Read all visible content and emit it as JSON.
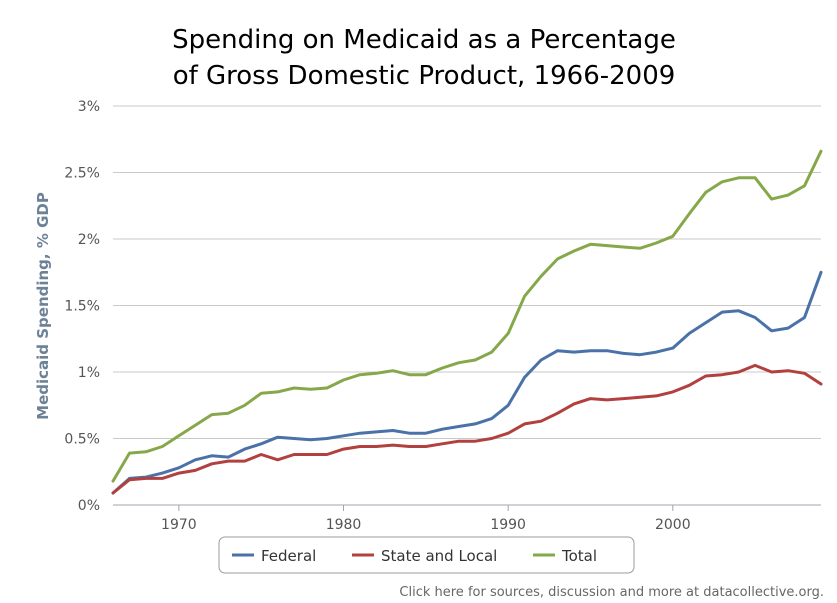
{
  "chart_data": {
    "type": "line",
    "title_lines": [
      "Spending on Medicaid as a Percentage",
      "of Gross Domestic Product, 1966-2009"
    ],
    "ylabel": "Medicaid Spending, % GDP",
    "xlabel": "",
    "xlim": [
      1966,
      2009
    ],
    "ylim": [
      0,
      3
    ],
    "x_ticks": [
      1970,
      1980,
      1990,
      2000
    ],
    "y_ticks": [
      0,
      0.5,
      1,
      1.5,
      2,
      2.5,
      3
    ],
    "y_tick_labels": [
      "0%",
      "0.5%",
      "1%",
      "1.5%",
      "2%",
      "2.5%",
      "3%"
    ],
    "grid": "horizontal",
    "legend_position": "bottom",
    "x": [
      1966,
      1967,
      1968,
      1969,
      1970,
      1971,
      1972,
      1973,
      1974,
      1975,
      1976,
      1977,
      1978,
      1979,
      1980,
      1981,
      1982,
      1983,
      1984,
      1985,
      1986,
      1987,
      1988,
      1989,
      1990,
      1991,
      1992,
      1993,
      1994,
      1995,
      1996,
      1997,
      1998,
      1999,
      2000,
      2001,
      2002,
      2003,
      2004,
      2005,
      2006,
      2007,
      2008,
      2009
    ],
    "series": [
      {
        "name": "Federal",
        "color": "#4a72a8",
        "values": [
          0.09,
          0.2,
          0.21,
          0.24,
          0.28,
          0.34,
          0.37,
          0.36,
          0.42,
          0.46,
          0.51,
          0.5,
          0.49,
          0.5,
          0.52,
          0.54,
          0.55,
          0.56,
          0.54,
          0.54,
          0.57,
          0.59,
          0.61,
          0.65,
          0.75,
          0.96,
          1.09,
          1.16,
          1.15,
          1.16,
          1.16,
          1.14,
          1.13,
          1.15,
          1.18,
          1.29,
          1.37,
          1.45,
          1.46,
          1.41,
          1.31,
          1.33,
          1.41,
          1.75
        ]
      },
      {
        "name": "State and Local",
        "color": "#b1403f",
        "values": [
          0.09,
          0.19,
          0.2,
          0.2,
          0.24,
          0.26,
          0.31,
          0.33,
          0.33,
          0.38,
          0.34,
          0.38,
          0.38,
          0.38,
          0.42,
          0.44,
          0.44,
          0.45,
          0.44,
          0.44,
          0.46,
          0.48,
          0.48,
          0.5,
          0.54,
          0.61,
          0.63,
          0.69,
          0.76,
          0.8,
          0.79,
          0.8,
          0.81,
          0.82,
          0.85,
          0.9,
          0.97,
          0.98,
          1.0,
          1.05,
          1.0,
          1.01,
          0.99,
          0.91
        ]
      },
      {
        "name": "Total",
        "color": "#86a84a",
        "values": [
          0.18,
          0.39,
          0.4,
          0.44,
          0.52,
          0.6,
          0.68,
          0.69,
          0.75,
          0.84,
          0.85,
          0.88,
          0.87,
          0.88,
          0.94,
          0.98,
          0.99,
          1.01,
          0.98,
          0.98,
          1.03,
          1.07,
          1.09,
          1.15,
          1.29,
          1.57,
          1.72,
          1.85,
          1.91,
          1.96,
          1.95,
          1.94,
          1.93,
          1.97,
          2.02,
          2.19,
          2.35,
          2.43,
          2.46,
          2.46,
          2.3,
          2.33,
          2.4,
          2.66
        ]
      }
    ]
  },
  "footer": {
    "note": "Click here for sources, discussion and more at datacollective.org."
  }
}
